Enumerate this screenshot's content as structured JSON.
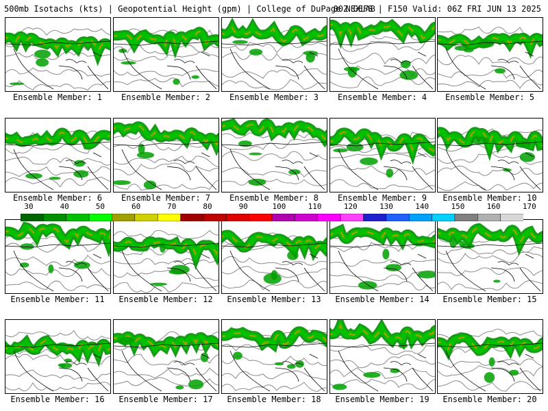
{
  "header": {
    "title": "500mb Isotachs (kts) | Geopotential Height (gpm) | College of DuPage NEXLAB",
    "run": "00Z GEFS | F150 Valid: 06Z FRI JUN 13 2025"
  },
  "members": [
    {
      "label": "Ensemble Member: 1"
    },
    {
      "label": "Ensemble Member: 2"
    },
    {
      "label": "Ensemble Member: 3"
    },
    {
      "label": "Ensemble Member: 4"
    },
    {
      "label": "Ensemble Member: 5"
    },
    {
      "label": "Ensemble Member: 6"
    },
    {
      "label": "Ensemble Member: 7"
    },
    {
      "label": "Ensemble Member: 8"
    },
    {
      "label": "Ensemble Member: 9"
    },
    {
      "label": "Ensemble Member: 10"
    },
    {
      "label": "Ensemble Member: 11"
    },
    {
      "label": "Ensemble Member: 12"
    },
    {
      "label": "Ensemble Member: 13"
    },
    {
      "label": "Ensemble Member: 14"
    },
    {
      "label": "Ensemble Member: 15"
    },
    {
      "label": "Ensemble Member: 16"
    },
    {
      "label": "Ensemble Member: 17"
    },
    {
      "label": "Ensemble Member: 18"
    },
    {
      "label": "Ensemble Member: 19"
    },
    {
      "label": "Ensemble Member: 20"
    }
  ],
  "colorbar": {
    "labels": [
      "30",
      "40",
      "50",
      "60",
      "70",
      "80",
      "90",
      "100",
      "110",
      "120",
      "130",
      "140",
      "150",
      "160",
      "170"
    ],
    "colors": [
      "#006400",
      "#009000",
      "#00c000",
      "#00ff00",
      "#a0a000",
      "#d0d000",
      "#ffff00",
      "#a00000",
      "#c00000",
      "#e00000",
      "#ff0000",
      "#b000b0",
      "#d000d0",
      "#ff00ff",
      "#ff40ff",
      "#2020d0",
      "#2060ff",
      "#00a0ff",
      "#00d0ff",
      "#808080",
      "#b0b0b0",
      "#d8d8d8"
    ]
  }
}
